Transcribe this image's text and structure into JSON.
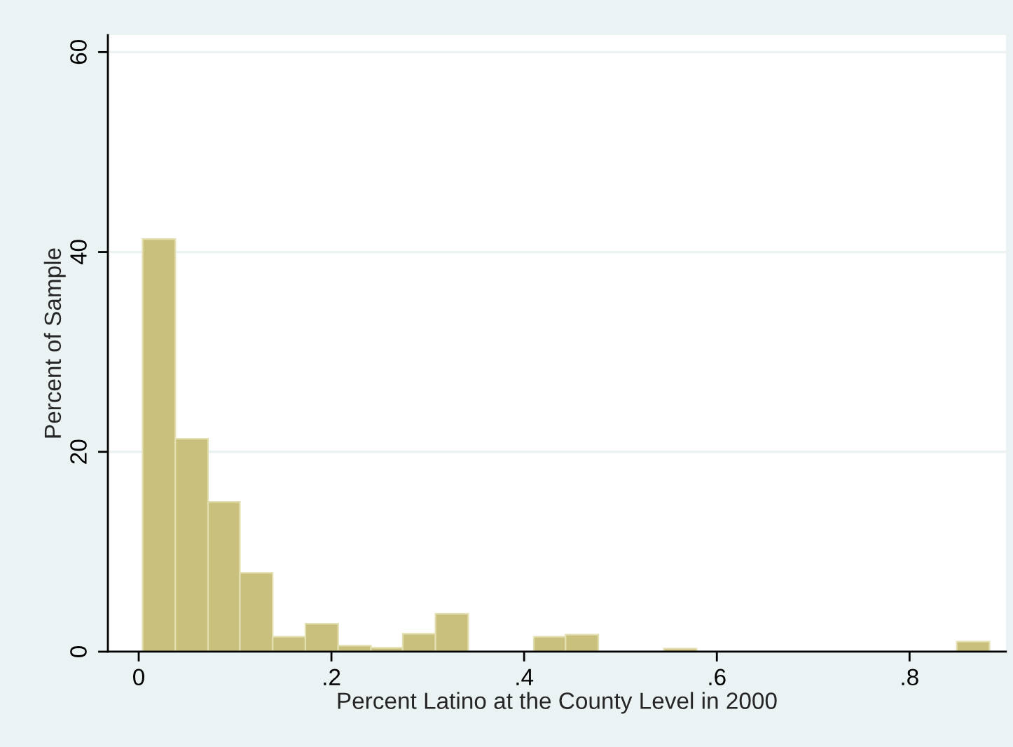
{
  "chart_data": {
    "type": "histogram",
    "xlabel": "Percent Latino at the County Level in 2000",
    "ylabel": "Percent of Sample",
    "bins": [
      0.004,
      0.038,
      0.072,
      0.105,
      0.139,
      0.173,
      0.207,
      0.241,
      0.274,
      0.308,
      0.342,
      0.41,
      0.443,
      0.477,
      0.545,
      0.579,
      0.849,
      0.883
    ],
    "values": [
      41.3,
      21.3,
      15.0,
      7.9,
      1.5,
      2.8,
      0.6,
      0.4,
      1.8,
      3.8,
      0,
      1.5,
      1.7,
      0,
      0.3,
      0,
      1.0
    ],
    "color": "#c8c07c",
    "xlim": [
      -0.032,
      0.9
    ],
    "ylim": [
      0,
      61.7
    ],
    "xticks": [
      {
        "value": 0,
        "label": "0"
      },
      {
        "value": 0.2,
        "label": ".2"
      },
      {
        "value": 0.4,
        "label": ".4"
      },
      {
        "value": 0.6,
        "label": ".6"
      },
      {
        "value": 0.8,
        "label": ".8"
      }
    ],
    "yticks": [
      0,
      20,
      40,
      60
    ],
    "grid": "y"
  }
}
